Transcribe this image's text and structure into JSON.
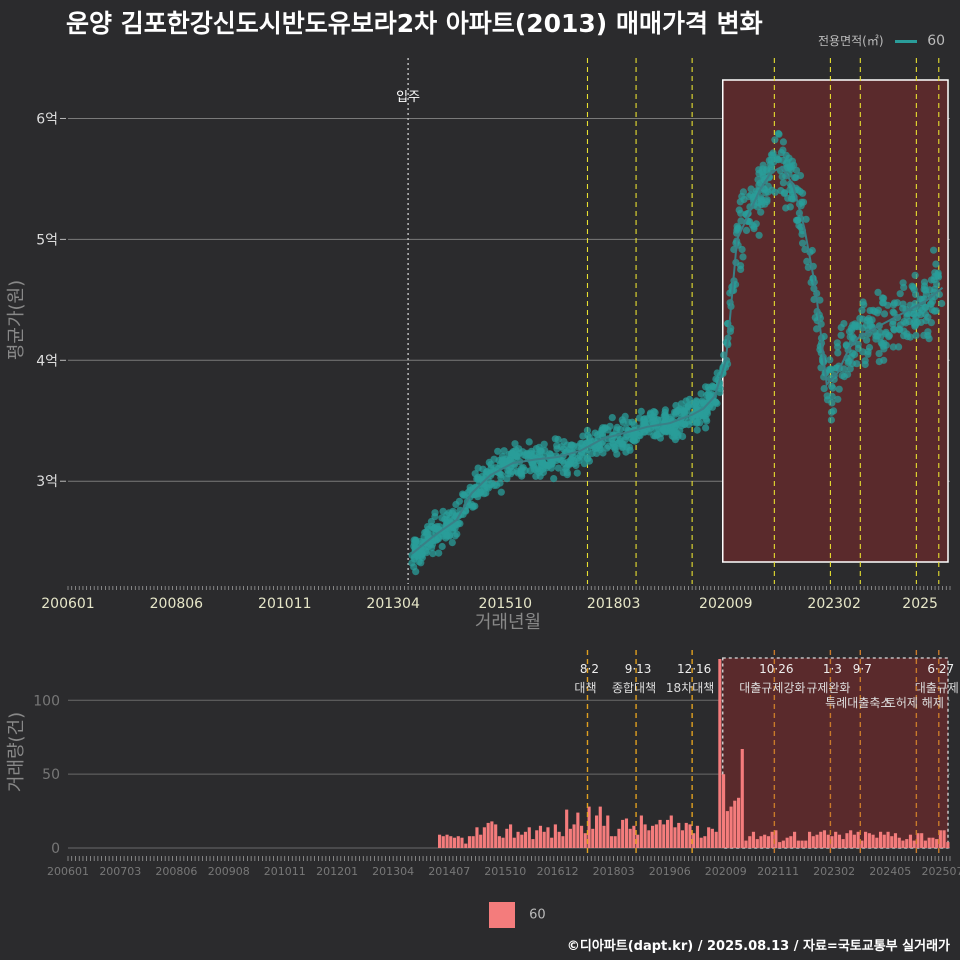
{
  "title": "운양 김포한강신도시반도유보라2차 아파트(2013) 매매가격 변화",
  "footer": "©디아파트(dapt.kr) / 2025.08.13 / 자료=국토교통부 실거래가",
  "legend_top": {
    "title": "전용면적(㎡)",
    "item": "60",
    "color": "#2a9d9a"
  },
  "legend_bottom": {
    "item": "60",
    "color": "#f47c7c"
  },
  "chart_data": [
    {
      "type": "scatter",
      "xlabel": "거래년월",
      "ylabel": "평균가(원)",
      "x_ticks": [
        "200601",
        "200806",
        "201011",
        "201304",
        "201510",
        "201803",
        "202009",
        "202302",
        "2025"
      ],
      "y_ticks": [
        "3억",
        "4억",
        "5억",
        "6억"
      ],
      "ylim": [
        215000000,
        650000000
      ],
      "grid": true,
      "annotation_moveIn": "입주",
      "series": [
        {
          "name": "60",
          "trend": [
            [
              "2013-09",
              240000000
            ],
            [
              "2014-03",
              255000000
            ],
            [
              "2014-09",
              268000000
            ],
            [
              "2015-01",
              290000000
            ],
            [
              "2015-06",
              305000000
            ],
            [
              "2015-12",
              315000000
            ],
            [
              "2016-06",
              318000000
            ],
            [
              "2016-12",
              320000000
            ],
            [
              "2017-06",
              325000000
            ],
            [
              "2017-12",
              335000000
            ],
            [
              "2018-06",
              340000000
            ],
            [
              "2018-12",
              345000000
            ],
            [
              "2019-06",
              348000000
            ],
            [
              "2019-12",
              355000000
            ],
            [
              "2020-03",
              360000000
            ],
            [
              "2020-06",
              370000000
            ],
            [
              "2020-09",
              400000000
            ],
            [
              "2020-10",
              430000000
            ],
            [
              "2020-12",
              500000000
            ],
            [
              "2021-03",
              520000000
            ],
            [
              "2021-06",
              540000000
            ],
            [
              "2021-09",
              555000000
            ],
            [
              "2021-12",
              560000000
            ],
            [
              "2022-03",
              545000000
            ],
            [
              "2022-06",
              510000000
            ],
            [
              "2022-09",
              460000000
            ],
            [
              "2022-12",
              380000000
            ],
            [
              "2023-03",
              390000000
            ],
            [
              "2023-06",
              410000000
            ],
            [
              "2023-09",
              420000000
            ],
            [
              "2023-12",
              425000000
            ],
            [
              "2024-03",
              430000000
            ],
            [
              "2024-06",
              435000000
            ],
            [
              "2024-09",
              440000000
            ],
            [
              "2024-12",
              445000000
            ],
            [
              "2025-03",
              450000000
            ],
            [
              "2025-07",
              460000000
            ]
          ]
        }
      ]
    },
    {
      "type": "bar",
      "xlabel": "",
      "ylabel": "거래량(건)",
      "x_ticks": [
        "200601",
        "200703",
        "200806",
        "200908",
        "201011",
        "201201",
        "201304",
        "201407",
        "201510",
        "201612",
        "201803",
        "201906",
        "202009",
        "202111",
        "202302",
        "202405",
        "202507"
      ],
      "y_ticks": [
        "0",
        "50",
        "100"
      ],
      "ylim": [
        0,
        130
      ],
      "grid": true,
      "series": [
        {
          "name": "60"
        }
      ]
    }
  ],
  "policy_events": [
    {
      "date": "2017-08",
      "label_date": "8·2",
      "label_text": "대책"
    },
    {
      "date": "2018-09",
      "label_date": "9·13",
      "label_text": "종합대책"
    },
    {
      "date": "2019-12",
      "label_date": "12·16",
      "label_text": "18차대책"
    },
    {
      "date": "2021-10",
      "label_date": "10·26",
      "label_text": "대출규제강화"
    },
    {
      "date": "2023-01",
      "label_date": "1·3",
      "label_text": "규제완화"
    },
    {
      "date": "2023-09",
      "label_date": "9·7",
      "label_text": "특례대출축소"
    },
    {
      "date": "2025-06",
      "label_date": "6·27",
      "label_text": "대출규제"
    },
    {
      "date": "2024-12",
      "label_date": "",
      "label_text": "토허제 해제"
    }
  ]
}
